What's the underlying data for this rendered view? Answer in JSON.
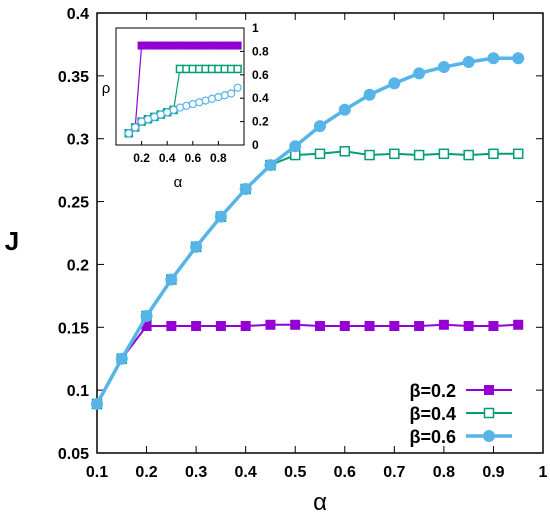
{
  "chart_data": [
    {
      "type": "line",
      "title": "",
      "xlabel": "α",
      "ylabel": "J",
      "xlim": [
        0.1,
        1
      ],
      "ylim": [
        0.05,
        0.4
      ],
      "xticks": [
        "0.1",
        "0.2",
        "0.3",
        "0.4",
        "0.5",
        "0.6",
        "0.7",
        "0.8",
        "0.9",
        "1"
      ],
      "yticks": [
        "0.05",
        "0.1",
        "0.15",
        "0.2",
        "0.25",
        "0.3",
        "0.35",
        "0.4"
      ],
      "legend_position": "bottom-right",
      "grid": false,
      "series": [
        {
          "name": "β=0.2",
          "color": "#9400d3",
          "marker": "filled-square",
          "x": [
            0.1,
            0.15,
            0.2,
            0.25,
            0.3,
            0.35,
            0.4,
            0.45,
            0.5,
            0.55,
            0.6,
            0.65,
            0.7,
            0.75,
            0.8,
            0.85,
            0.9,
            0.95
          ],
          "y": [
            0.089,
            0.125,
            0.151,
            0.151,
            0.151,
            0.151,
            0.151,
            0.152,
            0.152,
            0.151,
            0.151,
            0.151,
            0.151,
            0.151,
            0.152,
            0.151,
            0.151,
            0.152
          ]
        },
        {
          "name": "β=0.4",
          "color": "#009e73",
          "marker": "open-square",
          "x": [
            0.1,
            0.15,
            0.2,
            0.25,
            0.3,
            0.35,
            0.4,
            0.45,
            0.5,
            0.55,
            0.6,
            0.65,
            0.7,
            0.75,
            0.8,
            0.85,
            0.9,
            0.95
          ],
          "y": [
            0.089,
            0.125,
            0.159,
            0.188,
            0.214,
            0.238,
            0.26,
            0.279,
            0.287,
            0.288,
            0.29,
            0.287,
            0.288,
            0.287,
            0.288,
            0.287,
            0.288,
            0.288
          ]
        },
        {
          "name": "β=0.6",
          "color": "#56b4e9",
          "marker": "filled-circle",
          "x": [
            0.1,
            0.15,
            0.2,
            0.25,
            0.3,
            0.35,
            0.4,
            0.45,
            0.5,
            0.55,
            0.6,
            0.65,
            0.7,
            0.75,
            0.8,
            0.85,
            0.9,
            0.95
          ],
          "y": [
            0.089,
            0.125,
            0.159,
            0.188,
            0.214,
            0.238,
            0.26,
            0.279,
            0.294,
            0.31,
            0.323,
            0.335,
            0.344,
            0.352,
            0.357,
            0.361,
            0.364,
            0.364
          ]
        }
      ]
    },
    {
      "type": "line",
      "title": "",
      "xlabel": "α",
      "ylabel": "ρ",
      "xlim": [
        0,
        1
      ],
      "ylim": [
        0,
        1
      ],
      "xticks": [
        "0.2",
        "0.4",
        "0.6",
        "0.8"
      ],
      "yticks": [
        "0",
        "0.2",
        "0.4",
        "0.6",
        "0.8",
        "1"
      ],
      "series": [
        {
          "name": "β=0.2",
          "color": "#9400d3",
          "marker": "filled-square",
          "x": [
            0.1,
            0.15,
            0.2,
            0.25,
            0.3,
            0.35,
            0.4,
            0.45,
            0.5,
            0.55,
            0.6,
            0.65,
            0.7,
            0.75,
            0.8,
            0.85,
            0.9,
            0.95
          ],
          "y": [
            0.1,
            0.15,
            0.85,
            0.85,
            0.85,
            0.85,
            0.85,
            0.85,
            0.85,
            0.85,
            0.85,
            0.85,
            0.85,
            0.85,
            0.85,
            0.85,
            0.85,
            0.85
          ]
        },
        {
          "name": "β=0.4",
          "color": "#009e73",
          "marker": "open-square",
          "x": [
            0.1,
            0.15,
            0.2,
            0.25,
            0.3,
            0.35,
            0.4,
            0.45,
            0.5,
            0.55,
            0.6,
            0.65,
            0.7,
            0.75,
            0.8,
            0.85,
            0.9,
            0.95
          ],
          "y": [
            0.1,
            0.15,
            0.2,
            0.22,
            0.24,
            0.26,
            0.28,
            0.3,
            0.65,
            0.65,
            0.65,
            0.65,
            0.65,
            0.65,
            0.65,
            0.65,
            0.65,
            0.65
          ]
        },
        {
          "name": "β=0.6",
          "color": "#56b4e9",
          "marker": "open-circle",
          "x": [
            0.1,
            0.15,
            0.2,
            0.25,
            0.3,
            0.35,
            0.4,
            0.45,
            0.5,
            0.55,
            0.6,
            0.65,
            0.7,
            0.75,
            0.8,
            0.85,
            0.9,
            0.95
          ],
          "y": [
            0.1,
            0.15,
            0.2,
            0.22,
            0.24,
            0.26,
            0.28,
            0.3,
            0.32,
            0.335,
            0.35,
            0.365,
            0.38,
            0.395,
            0.41,
            0.425,
            0.44,
            0.49
          ]
        }
      ]
    }
  ]
}
